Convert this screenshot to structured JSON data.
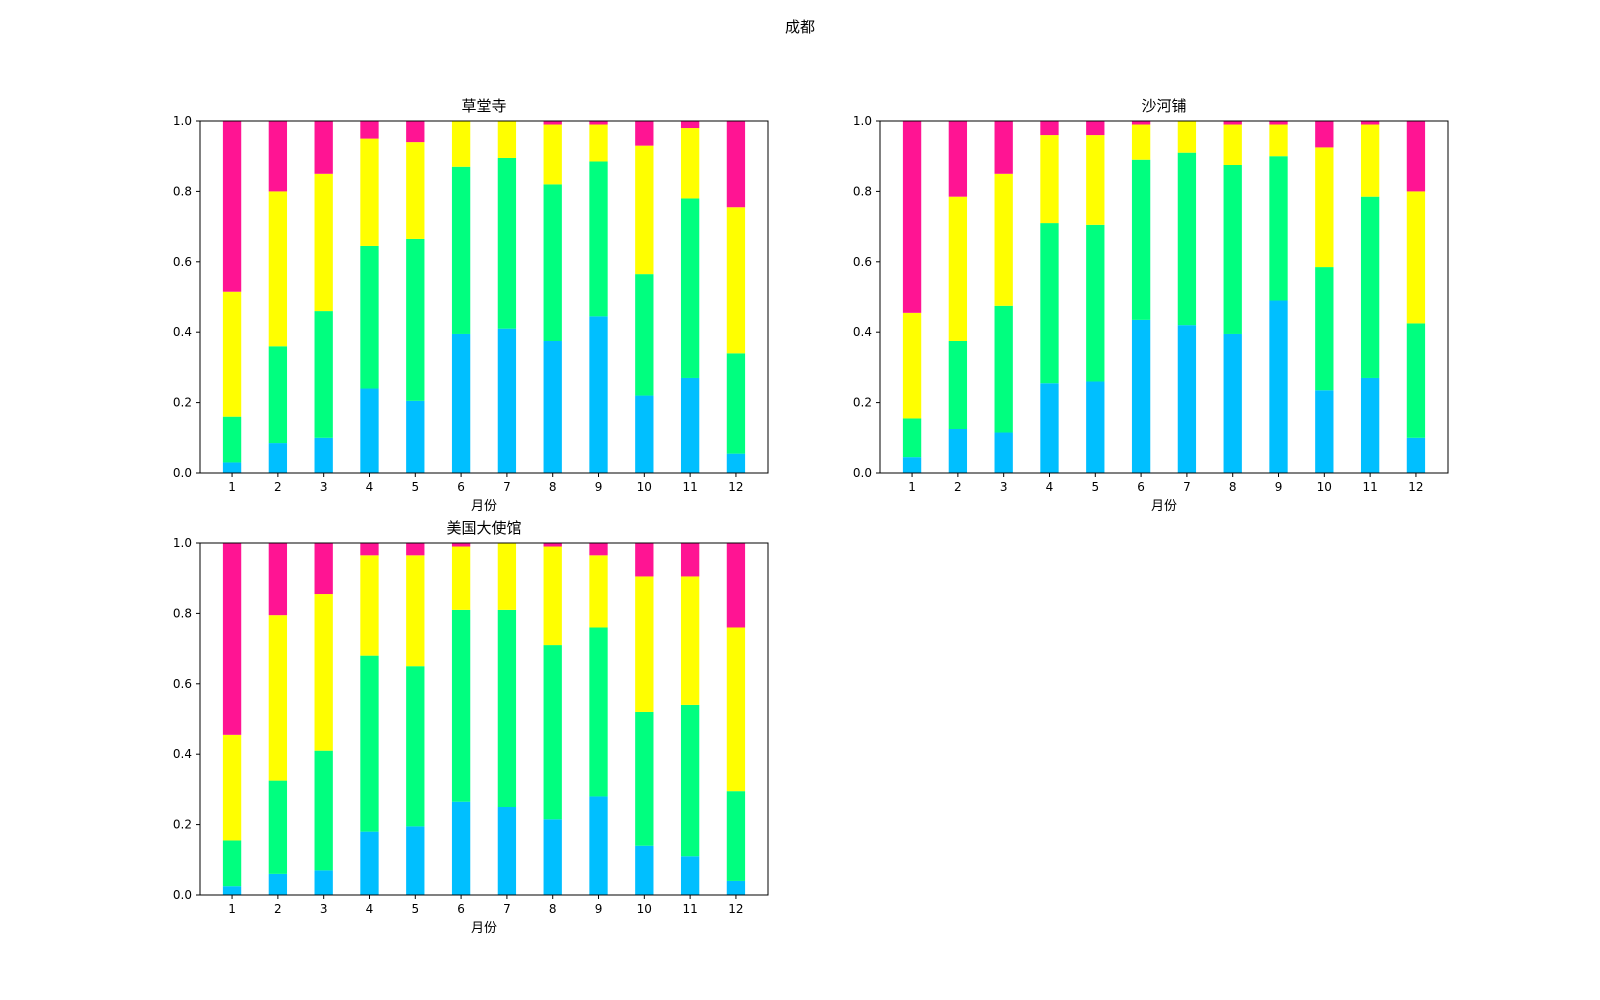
{
  "figure": {
    "suptitle": "成都"
  },
  "colors": {
    "band1": "#00bfff",
    "band2": "#00ff7f",
    "band3": "#ffff00",
    "band4": "#ff1493"
  },
  "chart_data": [
    {
      "type": "bar",
      "stacked": true,
      "title": "草堂寺",
      "xlabel": "月份",
      "ylabel": "",
      "ylim": [
        0,
        1.0
      ],
      "yticks": [
        "0.0",
        "0.2",
        "0.4",
        "0.6",
        "0.8",
        "1.0"
      ],
      "categories": [
        "1",
        "2",
        "3",
        "4",
        "5",
        "6",
        "7",
        "8",
        "9",
        "10",
        "11",
        "12"
      ],
      "series": [
        {
          "values": [
            0.03,
            0.085,
            0.1,
            0.24,
            0.205,
            0.395,
            0.41,
            0.375,
            0.445,
            0.22,
            0.27,
            0.055
          ]
        },
        {
          "values": [
            0.13,
            0.275,
            0.36,
            0.405,
            0.46,
            0.475,
            0.485,
            0.445,
            0.44,
            0.345,
            0.51,
            0.285
          ]
        },
        {
          "values": [
            0.355,
            0.44,
            0.39,
            0.305,
            0.275,
            0.13,
            0.105,
            0.17,
            0.105,
            0.365,
            0.2,
            0.415
          ]
        },
        {
          "values": [
            0.485,
            0.2,
            0.15,
            0.05,
            0.06,
            0.0,
            0.0,
            0.01,
            0.01,
            0.07,
            0.02,
            0.245
          ]
        }
      ]
    },
    {
      "type": "bar",
      "stacked": true,
      "title": "沙河铺",
      "xlabel": "月份",
      "ylabel": "",
      "ylim": [
        0,
        1.0
      ],
      "yticks": [
        "0.0",
        "0.2",
        "0.4",
        "0.6",
        "0.8",
        "1.0"
      ],
      "categories": [
        "1",
        "2",
        "3",
        "4",
        "5",
        "6",
        "7",
        "8",
        "9",
        "10",
        "11",
        "12"
      ],
      "series": [
        {
          "values": [
            0.045,
            0.125,
            0.115,
            0.255,
            0.26,
            0.435,
            0.42,
            0.395,
            0.49,
            0.235,
            0.27,
            0.1
          ]
        },
        {
          "values": [
            0.11,
            0.25,
            0.36,
            0.455,
            0.445,
            0.455,
            0.49,
            0.48,
            0.41,
            0.35,
            0.515,
            0.325
          ]
        },
        {
          "values": [
            0.3,
            0.41,
            0.375,
            0.25,
            0.255,
            0.1,
            0.09,
            0.115,
            0.09,
            0.34,
            0.205,
            0.375
          ]
        },
        {
          "values": [
            0.545,
            0.215,
            0.15,
            0.04,
            0.04,
            0.01,
            0.0,
            0.01,
            0.01,
            0.075,
            0.01,
            0.2
          ]
        }
      ]
    },
    {
      "type": "bar",
      "stacked": true,
      "title": "美国大使馆",
      "xlabel": "月份",
      "ylabel": "",
      "ylim": [
        0,
        1.0
      ],
      "yticks": [
        "0.0",
        "0.2",
        "0.4",
        "0.6",
        "0.8",
        "1.0"
      ],
      "categories": [
        "1",
        "2",
        "3",
        "4",
        "5",
        "6",
        "7",
        "8",
        "9",
        "10",
        "11",
        "12"
      ],
      "series": [
        {
          "values": [
            0.025,
            0.06,
            0.07,
            0.18,
            0.195,
            0.265,
            0.25,
            0.215,
            0.28,
            0.14,
            0.11,
            0.04
          ]
        },
        {
          "values": [
            0.13,
            0.265,
            0.34,
            0.5,
            0.455,
            0.545,
            0.56,
            0.495,
            0.48,
            0.38,
            0.43,
            0.255
          ]
        },
        {
          "values": [
            0.3,
            0.47,
            0.445,
            0.285,
            0.315,
            0.18,
            0.19,
            0.28,
            0.205,
            0.385,
            0.365,
            0.465
          ]
        },
        {
          "values": [
            0.545,
            0.205,
            0.145,
            0.035,
            0.035,
            0.01,
            0.0,
            0.01,
            0.035,
            0.095,
            0.095,
            0.24
          ]
        }
      ]
    }
  ]
}
